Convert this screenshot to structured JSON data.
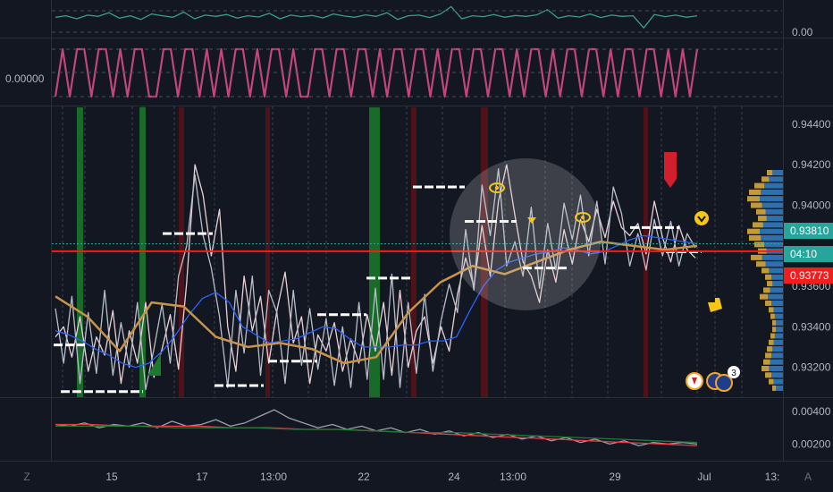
{
  "chart_data": [
    {
      "type": "line",
      "panel": "indicator-top",
      "ticks": [
        "0.00"
      ],
      "series": [
        {
          "values": [
            0.55,
            0.6,
            0.5,
            0.62,
            0.58,
            0.7,
            0.52,
            0.6,
            0.48,
            0.66,
            0.6,
            0.55,
            0.72,
            0.5,
            0.62,
            0.58,
            0.64,
            0.52,
            0.6,
            0.56,
            0.68,
            0.5,
            0.62,
            0.57,
            0.61,
            0.53,
            0.66,
            0.59,
            0.55,
            0.63,
            0.58,
            0.7,
            0.48,
            0.6,
            0.62,
            0.54,
            0.66,
            0.9,
            0.5,
            0.6,
            0.57,
            0.64,
            0.55,
            0.61,
            0.58,
            0.63,
            0.8,
            0.52,
            0.6,
            0.56,
            0.66,
            0.54,
            0.62,
            0.58,
            0.6,
            0.2,
            0.64,
            0.57,
            0.62,
            0.55,
            0.6
          ]
        }
      ],
      "ylim": [
        0,
        1
      ]
    },
    {
      "type": "line",
      "panel": "indicator-square",
      "ticks": [
        "0.00000"
      ],
      "series": [
        {
          "values": [
            0,
            1,
            0,
            1,
            1,
            0,
            1,
            1,
            0,
            1,
            0,
            1,
            1,
            0,
            0,
            1,
            1,
            0,
            1,
            1,
            0,
            1,
            0,
            1,
            0,
            1,
            1,
            0,
            1,
            0,
            1,
            1,
            0,
            1,
            0,
            0,
            1,
            1,
            0,
            1,
            1,
            0,
            1,
            1,
            0,
            1,
            0,
            1,
            1,
            0,
            1,
            1,
            0,
            1,
            0,
            1,
            1,
            0,
            1,
            1,
            0,
            1,
            1,
            0,
            1,
            0,
            1,
            1,
            0,
            1,
            0,
            1,
            1,
            0,
            1,
            1,
            0,
            1,
            0,
            1,
            1,
            0,
            1,
            1,
            0,
            1,
            0,
            1,
            0,
            1
          ]
        }
      ],
      "ylim": [
        0,
        1
      ]
    },
    {
      "type": "line",
      "panel": "price",
      "y_ticks": [
        "0.94400",
        "0.94200",
        "0.94000",
        "0.93600",
        "0.93400",
        "0.93200"
      ],
      "ylim": [
        0.9307,
        0.9447
      ],
      "price_badges": [
        {
          "label": "0.93810",
          "value": 0.9381,
          "color": "#26a69a"
        },
        {
          "label": "04:10",
          "value": 0.9372,
          "color": "#26a69a"
        },
        {
          "label": "0.93773",
          "value": 0.93773,
          "color": "#f21e1e"
        }
      ],
      "support_line": 0.93773,
      "series": [
        {
          "color": "#e8d1d6",
          "values": [
            0.9335,
            0.934,
            0.9325,
            0.9345,
            0.9318,
            0.9335,
            0.9326,
            0.9348,
            0.9312,
            0.9338,
            0.9322,
            0.9352,
            0.9315,
            0.9329,
            0.9346,
            0.9319,
            0.9362,
            0.942,
            0.9405,
            0.9375,
            0.9398,
            0.934,
            0.9318,
            0.9365,
            0.9338,
            0.9355,
            0.9322,
            0.9348,
            0.9367,
            0.9332,
            0.9345,
            0.9312,
            0.9336,
            0.9328,
            0.9342,
            0.9318,
            0.9334,
            0.9322,
            0.9346,
            0.9328,
            0.9352,
            0.9316,
            0.9358,
            0.932,
            0.9338,
            0.9345,
            0.9322,
            0.934,
            0.9328,
            0.9356,
            0.9374,
            0.936,
            0.939,
            0.9365,
            0.9402,
            0.942,
            0.9395,
            0.9372,
            0.9365,
            0.9352,
            0.9378,
            0.9362,
            0.9388,
            0.9371,
            0.9393,
            0.9382,
            0.9398,
            0.9384,
            0.9402,
            0.9389,
            0.9385,
            0.9391,
            0.9376,
            0.9402,
            0.9384,
            0.9372,
            0.939,
            0.9378,
            0.9374
          ]
        },
        {
          "color": "#b8bec9",
          "values": [
            0.9349,
            0.9322,
            0.9355,
            0.9312,
            0.9347,
            0.9317,
            0.9358,
            0.9316,
            0.9342,
            0.932,
            0.9352,
            0.9309,
            0.9329,
            0.9351,
            0.9322,
            0.9365,
            0.938,
            0.9415,
            0.9385,
            0.9369,
            0.9345,
            0.931,
            0.9358,
            0.9327,
            0.9365,
            0.9316,
            0.9358,
            0.9347,
            0.9312,
            0.9358,
            0.9321,
            0.9349,
            0.9319,
            0.9344,
            0.9311,
            0.934,
            0.931,
            0.9352,
            0.9314,
            0.9359,
            0.9314,
            0.9366,
            0.931,
            0.9352,
            0.9317,
            0.9356,
            0.9318,
            0.9343,
            0.9361,
            0.9347,
            0.9388,
            0.9358,
            0.941,
            0.9385,
            0.9418,
            0.937,
            0.9382,
            0.9365,
            0.9399,
            0.9359,
            0.9391,
            0.9368,
            0.9401,
            0.9383,
            0.9405,
            0.9375,
            0.9402,
            0.9371,
            0.9409,
            0.9396,
            0.937,
            0.9386,
            0.9368,
            0.9393,
            0.9375,
            0.9392,
            0.937,
            0.9386,
            0.9379
          ]
        },
        {
          "color": "#2962ff",
          "values": [
            0.9338,
            0.9336,
            0.9333,
            0.9329,
            0.9326,
            0.9322,
            0.932,
            0.9322,
            0.9328,
            0.9336,
            0.9346,
            0.9354,
            0.9357,
            0.9352,
            0.934,
            0.9336,
            0.9332,
            0.9333,
            0.9334,
            0.9337,
            0.934,
            0.9339,
            0.9334,
            0.933,
            0.933,
            0.933,
            0.9331,
            0.9331,
            0.9333,
            0.9333,
            0.9335,
            0.9348,
            0.936,
            0.9368,
            0.9372,
            0.9374,
            0.9376,
            0.9377,
            0.9379,
            0.9378,
            0.9376,
            0.9377,
            0.938,
            0.9383,
            0.9385,
            0.9384,
            0.9383,
            0.9382,
            0.9381
          ]
        },
        {
          "color": "#c8944a",
          "values": [
            0.9355,
            0.9345,
            0.9328,
            0.9352,
            0.935,
            0.9335,
            0.933,
            0.9332,
            0.9329,
            0.9322,
            0.9325,
            0.9347,
            0.9362,
            0.937,
            0.9366,
            0.9372,
            0.9378,
            0.9382,
            0.938,
            0.9378,
            0.938
          ]
        }
      ],
      "levels": [
        {
          "label": "",
          "value": 0.9331
        },
        {
          "label": "",
          "value": 0.9308
        },
        {
          "label": "",
          "value": 0.9386
        },
        {
          "label": "",
          "value": 0.9311
        },
        {
          "label": "",
          "value": 0.9323
        },
        {
          "label": "",
          "value": 0.9346
        },
        {
          "label": "",
          "value": 0.9364
        },
        {
          "label": "",
          "value": 0.9409
        },
        {
          "label": "",
          "value": 0.9369
        },
        {
          "label": "",
          "value": 0.9392
        },
        {
          "label": "",
          "value": 0.9389
        },
        {
          "label": "",
          "value": 0.9377
        }
      ],
      "events_count": "3"
    },
    {
      "type": "line",
      "panel": "indicator-bottom",
      "y_ticks": [
        "0.00400",
        "0.00200"
      ],
      "ylim": [
        0.0012,
        0.0046
      ],
      "series": [
        {
          "color": "#9aa0aa",
          "values": [
            0.0032,
            0.0031,
            0.0033,
            0.003,
            0.0032,
            0.0031,
            0.0033,
            0.003,
            0.0034,
            0.0031,
            0.0032,
            0.0035,
            0.0031,
            0.0033,
            0.0037,
            0.0041,
            0.0036,
            0.0033,
            0.003,
            0.0032,
            0.0029,
            0.0031,
            0.0028,
            0.003,
            0.0027,
            0.0029,
            0.0026,
            0.0028,
            0.0025,
            0.0027,
            0.0024,
            0.0026,
            0.0023,
            0.0025,
            0.0022,
            0.0024,
            0.0021,
            0.0023,
            0.002,
            0.0022,
            0.0019,
            0.0021,
            0.002,
            0.0021,
            0.002
          ]
        },
        {
          "color": "#f23645",
          "values": [
            0.0032,
            0.0032,
            0.0031,
            0.0031,
            0.0031,
            0.003,
            0.003,
            0.0029,
            0.0029,
            0.0028,
            0.0027,
            0.0026,
            0.0025,
            0.0024,
            0.0023,
            0.0022,
            0.0021,
            0.002,
            0.0019
          ]
        },
        {
          "color": "#1f7a3a",
          "values": [
            0.0031,
            0.0031,
            0.0031,
            0.003,
            0.003,
            0.003,
            0.0029,
            0.0029,
            0.0028,
            0.0027,
            0.0027,
            0.0026,
            0.0025,
            0.0024,
            0.0023,
            0.0022,
            0.0021
          ]
        }
      ]
    }
  ],
  "x_axis": {
    "ticks": [
      "15",
      "17",
      "13:00",
      "22",
      "24",
      "13:00",
      "29",
      "Jul",
      "13:"
    ]
  },
  "corner_left": "Z",
  "corner_right": "A"
}
